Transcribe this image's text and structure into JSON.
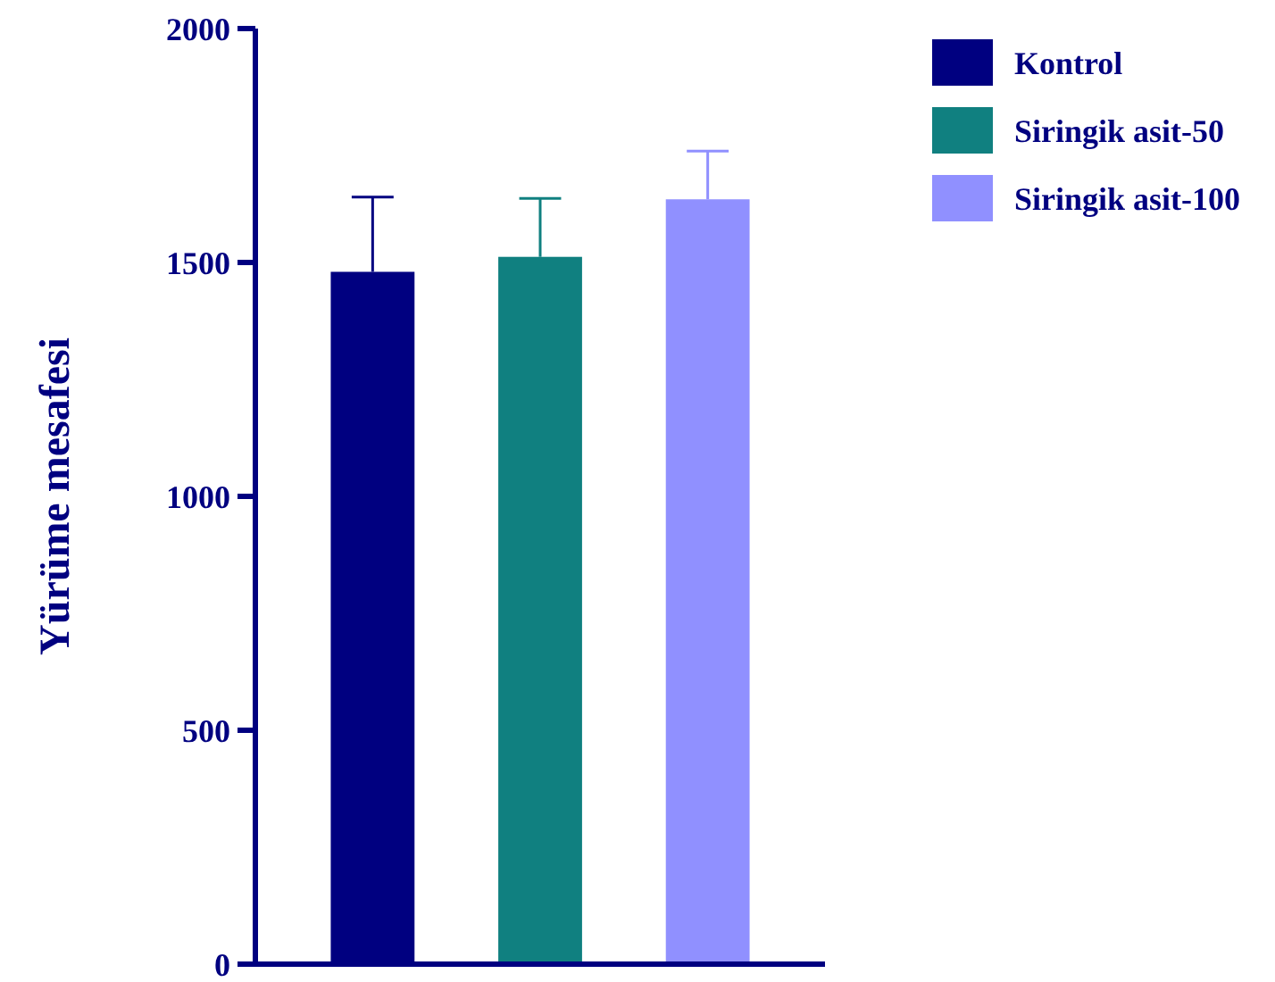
{
  "chart_data": {
    "type": "bar",
    "ylabel": "Yürüme mesafesi",
    "categories": [
      null
    ],
    "series": [
      {
        "name": "Kontrol",
        "color": "#000080",
        "values": [
          1480
        ],
        "errors": [
          [
            1480,
            1640
          ]
        ]
      },
      {
        "name": "Siringik asit-50",
        "color": "#108080",
        "values": [
          1512
        ],
        "errors": [
          [
            1512,
            1637
          ]
        ]
      },
      {
        "name": "Siringik asit-100",
        "color": "#9090ff",
        "values": [
          1635
        ],
        "errors": [
          [
            1635,
            1738
          ]
        ]
      }
    ],
    "ylim": [
      0,
      2000
    ],
    "yticks": [
      0,
      500,
      1000,
      1500,
      2000
    ],
    "grid": false,
    "legend": "top right",
    "tick_labels": "y"
  }
}
